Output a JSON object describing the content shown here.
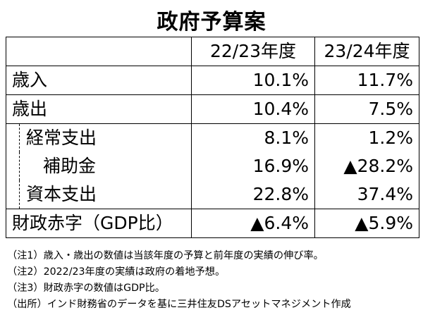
{
  "title": "政府予算案",
  "table": {
    "headers": [
      "",
      "22/23年度",
      "23/24年度"
    ],
    "rows": [
      {
        "label": "歳入",
        "fy2223": "10.1%",
        "fy2324": "11.7%"
      },
      {
        "label": "歳出",
        "fy2223": "10.4%",
        "fy2324": "7.5%"
      },
      {
        "label": "経常支出",
        "fy2223": "8.1%",
        "fy2324": "1.2%"
      },
      {
        "label": "補助金",
        "fy2223": "16.9%",
        "fy2324": "▲28.2%"
      },
      {
        "label": "資本支出",
        "fy2223": "22.8%",
        "fy2324": "37.4%"
      },
      {
        "label": "財政赤字（GDP比）",
        "fy2223": "▲6.4%",
        "fy2324": "▲5.9%"
      }
    ]
  },
  "notes": [
    "（注1）歳入・歳出の数値は当該年度の予算と前年度の実績の伸び率。",
    "（注2）2022/23年度の実績は政府の着地予想。",
    "（注3）財政赤字の数値はGDP比。",
    "（出所）インド財務省のデータを基に三井住友DSアセットマネジメント作成"
  ]
}
